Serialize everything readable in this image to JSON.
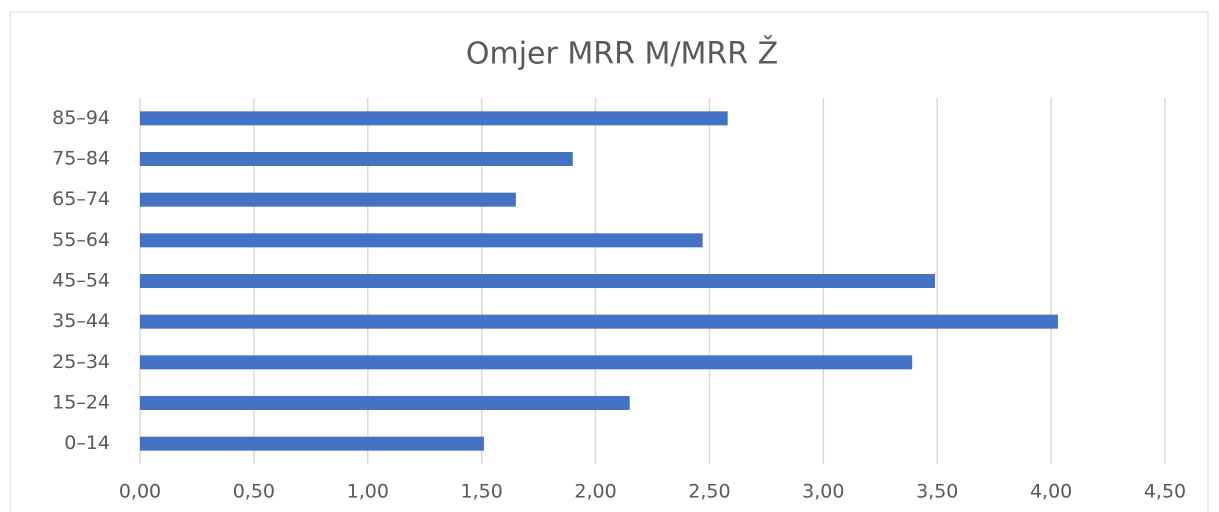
{
  "chart_data": {
    "type": "hbar",
    "title": "Omjer MRR M/MRR Ž",
    "categories": [
      "0–14",
      "15–24",
      "25–34",
      "35–44",
      "45–54",
      "55–64",
      "65–74",
      "75–84",
      "85–94"
    ],
    "values": [
      1.51,
      2.15,
      3.39,
      4.03,
      3.49,
      2.47,
      1.65,
      1.9,
      2.58
    ],
    "color": "#4472c4",
    "xlim": [
      0,
      4.5
    ],
    "xticks": [
      {
        "value": 0,
        "label": "0,00"
      },
      {
        "value": 0.5,
        "label": "0,50"
      },
      {
        "value": 1,
        "label": "1,00"
      },
      {
        "value": 1.5,
        "label": "1,50"
      },
      {
        "value": 2,
        "label": "2,00"
      },
      {
        "value": 2.5,
        "label": "2,50"
      },
      {
        "value": 3,
        "label": "3,00"
      },
      {
        "value": 3.5,
        "label": "3,50"
      },
      {
        "value": 4,
        "label": "4,00"
      },
      {
        "value": 4.5,
        "label": "4,50"
      }
    ],
    "grid": true
  }
}
